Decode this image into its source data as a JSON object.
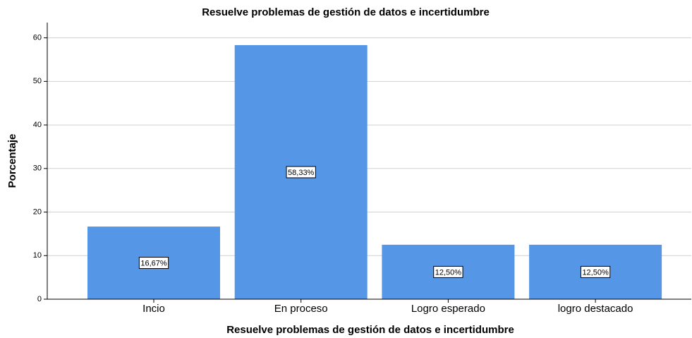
{
  "chart_data": {
    "type": "bar",
    "title": "Resuelve problemas de gestión de datos e incertidumbre",
    "x_label": "Resuelve problemas de gestión de datos e incertidumbre",
    "y_label": "Porcentaje",
    "categories": [
      "Incio",
      "En proceso",
      "Logro esperado",
      "logro destacado"
    ],
    "values": [
      16.67,
      58.33,
      12.5,
      12.5
    ],
    "value_labels": [
      "16,67%",
      "58,33%",
      "12,50%",
      "12,50%"
    ],
    "color": "#5596e6",
    "ylim": [
      0,
      63.5
    ],
    "yticks": [
      0,
      10,
      20,
      30,
      40,
      50,
      60
    ],
    "grid": true
  }
}
